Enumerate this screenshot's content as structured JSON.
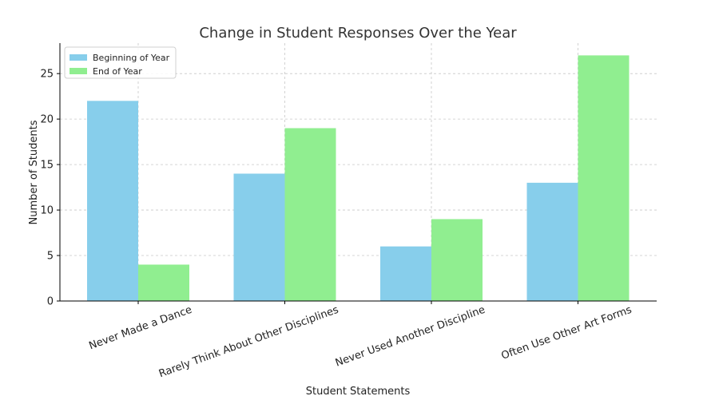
{
  "chart_data": {
    "type": "bar",
    "title": "Change in Student Responses Over the Year",
    "xlabel": "Student Statements",
    "ylabel": "Number of Students",
    "categories": [
      "Never Made a Dance",
      "Rarely Think About Other Disciplines",
      "Never Used Another Discipline",
      "Often Use Other Art Forms"
    ],
    "series": [
      {
        "name": "Beginning of Year",
        "color": "#87CEEB",
        "values": [
          22,
          14,
          6,
          13
        ]
      },
      {
        "name": "End of Year",
        "color": "#90EE90",
        "values": [
          4,
          19,
          9,
          27
        ]
      }
    ],
    "ylim": [
      0,
      28.35
    ],
    "yticks": [
      0,
      5,
      10,
      15,
      20,
      25
    ],
    "grid": true,
    "legend": "top-left"
  }
}
